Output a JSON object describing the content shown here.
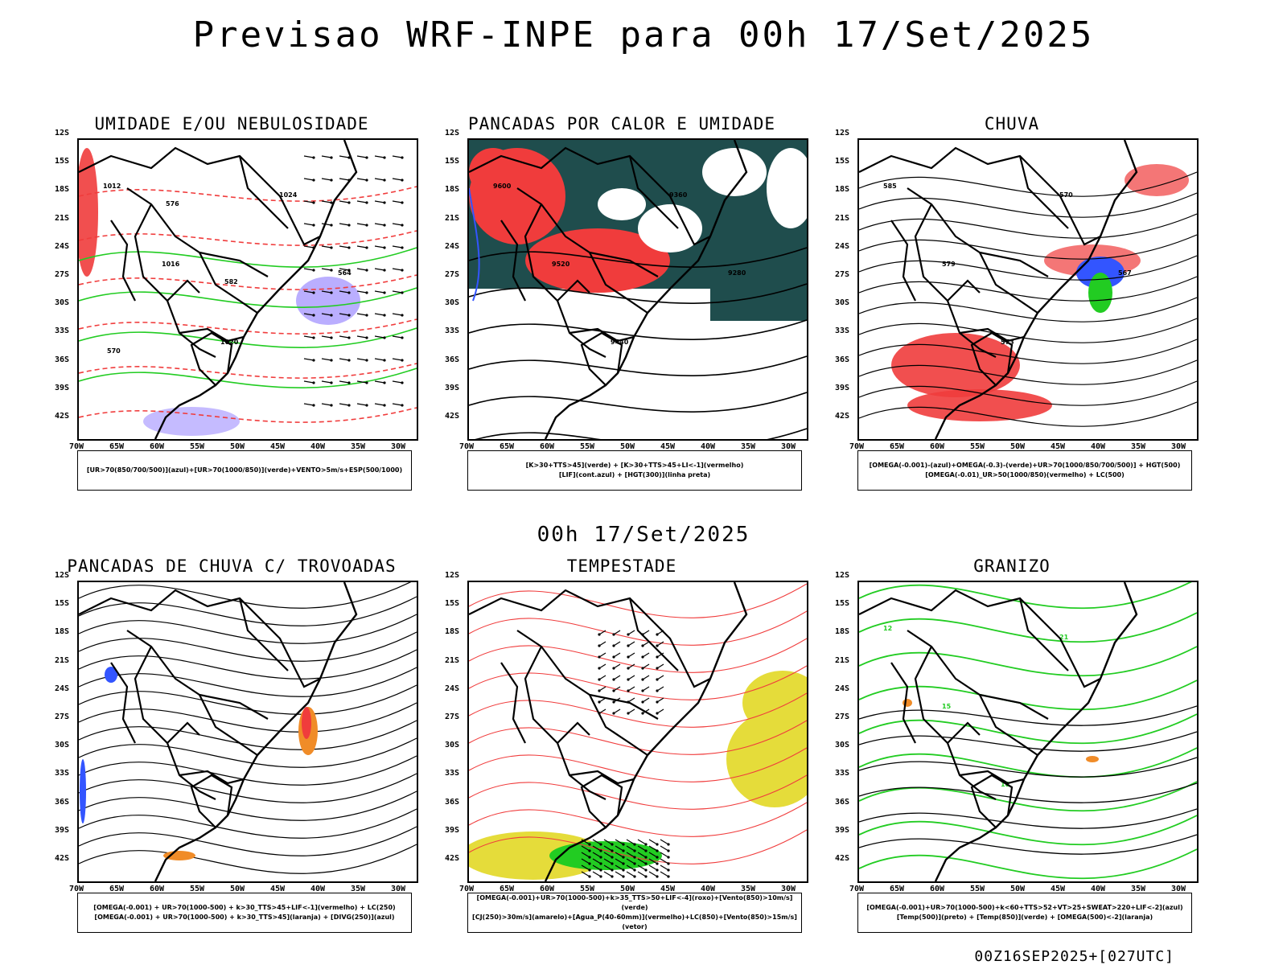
{
  "title": "Previsao WRF-INPE  para 00h 17/Set/2025",
  "subtitle": "00h 17/Set/2025",
  "footer": "00Z16SEP2025+[027UTC]",
  "lat_labels": [
    "12S",
    "15S",
    "18S",
    "21S",
    "24S",
    "27S",
    "30S",
    "33S",
    "36S",
    "39S",
    "42S"
  ],
  "lon_labels": [
    "70W",
    "65W",
    "60W",
    "55W",
    "50W",
    "45W",
    "40W",
    "35W",
    "30W"
  ],
  "panels": [
    {
      "title": "UMIDADE E/OU NEBULOSIDADE",
      "legend": [
        "[UR>70(850/700/500)](azul)+[UR>70(1000/850)](verde)+VENTO>5m/s+ESP(500/1000)"
      ],
      "contour_labels": [
        "1012",
        "1016",
        "1020",
        "1024",
        "564",
        "570",
        "576",
        "582"
      ]
    },
    {
      "title": "PANCADAS POR CALOR E UMIDADE",
      "legend": [
        "[K>30+TTS>45](verde) + [K>30+TTS>45+LI<-1](vermelho)",
        "[LIF](cont.azul) + [HGT(300)](linha preta)"
      ],
      "contour_labels": [
        "9600",
        "9520",
        "9440",
        "9360",
        "9280"
      ]
    },
    {
      "title": "CHUVA",
      "legend": [
        "[OMEGA(-0.001)-(azul)+OMEGA(-0.3)-(verde)+UR>70(1000/850/700/500)] + HGT(500)",
        "[OMEGA(-0.01)_UR>50(1000/850)(vermelho) + LC(500)"
      ],
      "contour_labels": [
        "585",
        "579",
        "573",
        "570",
        "567"
      ]
    },
    {
      "title": "PANCADAS DE CHUVA C/ TROVOADAS",
      "legend": [
        "[OMEGA(-0.001) + UR>70(1000-500) + k>30_TTS>45+LIF<-1](vermelho) + LC(250)",
        "[OMEGA(-0.001) + UR>70(1000-500) + k>30_TTS>45](laranja) + [DIVG(250)](azul)"
      ],
      "contour_labels": []
    },
    {
      "title": "TEMPESTADE",
      "legend": [
        "[OMEGA(-0.001)+UR>70(1000-500)+k>35_TTS>50+LIF<-4](roxo)+[Vento(850)>10m/s](verde)",
        "[CJ(250)>30m/s](amarelo)+[Agua_P(40-60mm)](vermelho)+LC(850)+[Vento(850)>15m/s](vetor)"
      ],
      "contour_labels": []
    },
    {
      "title": "GRANIZO",
      "legend": [
        "[OMEGA(-0.001)+UR>70(1000-500)+k<60+TTS>52+VT>25+SWEAT>220+LIF<-2](azul)",
        "[Temp(500)](preto) + [Temp(850)](verde) + [OMEGA(500)<-2](laranja)"
      ],
      "contour_labels": [
        "12",
        "15",
        "18",
        "21"
      ]
    }
  ],
  "colors": {
    "red": "#f03c3c",
    "green": "#22cc22",
    "blue": "#3355ff",
    "dark_teal": "#1f4d4d",
    "yellow": "#e5dc3a",
    "orange": "#f08c28",
    "purple": "#8c78ff"
  }
}
